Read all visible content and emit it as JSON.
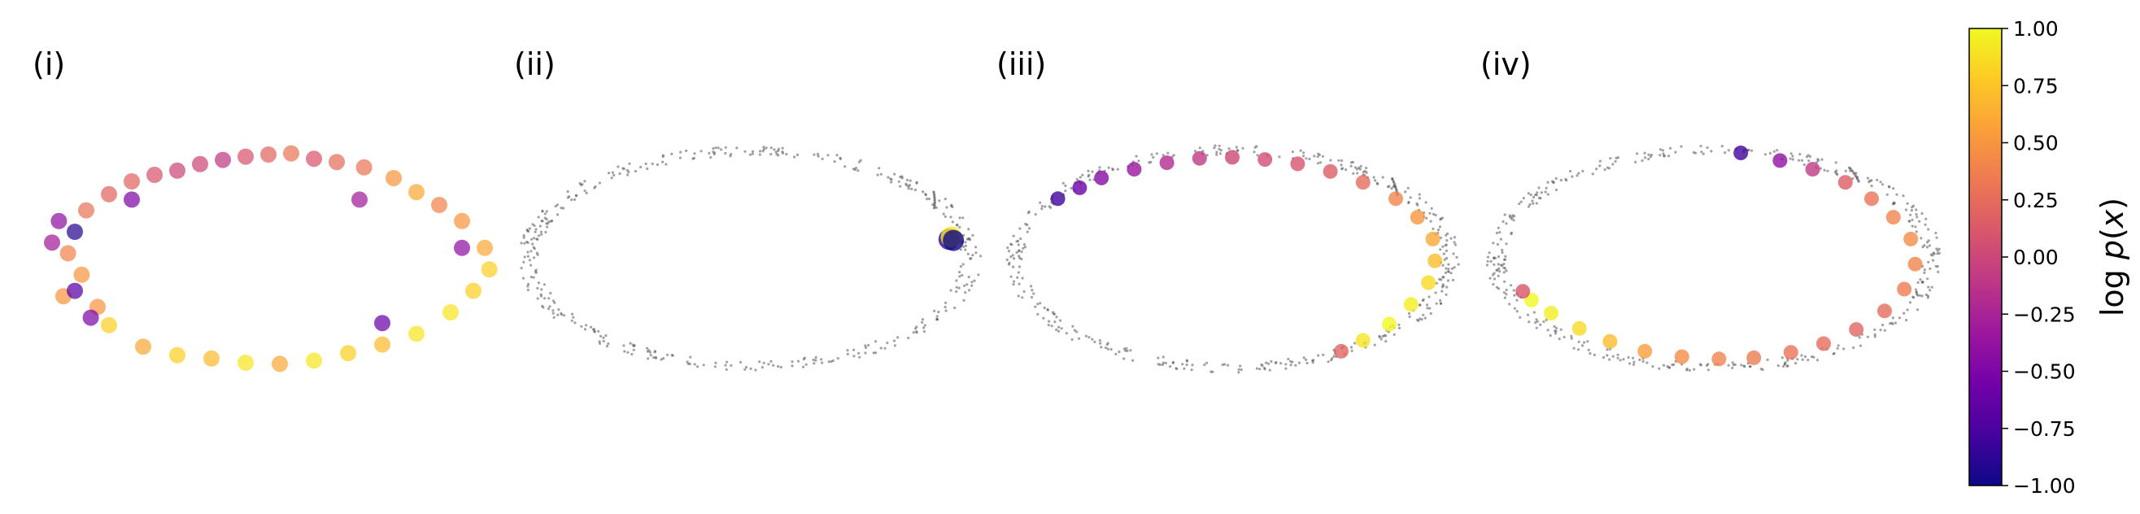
{
  "chart_data": [
    {
      "type": "scatter",
      "panel_label": "(i)",
      "grid": false,
      "axes_visible": false,
      "background_points": "none",
      "points": [
        {
          "x": -0.95,
          "y": 0.15,
          "v": -0.3
        },
        {
          "x": -0.92,
          "y": 0.35,
          "v": -0.4
        },
        {
          "x": -0.88,
          "y": 0.05,
          "v": 0.4
        },
        {
          "x": -0.85,
          "y": 0.25,
          "v": -0.9
        },
        {
          "x": -0.82,
          "y": -0.15,
          "v": 0.5
        },
        {
          "x": -0.9,
          "y": -0.35,
          "v": 0.5
        },
        {
          "x": -0.8,
          "y": 0.45,
          "v": 0.3
        },
        {
          "x": -0.75,
          "y": -0.45,
          "v": 0.5
        },
        {
          "x": -0.7,
          "y": 0.6,
          "v": 0.2
        },
        {
          "x": -0.6,
          "y": 0.72,
          "v": 0.2
        },
        {
          "x": -0.5,
          "y": 0.78,
          "v": 0.1
        },
        {
          "x": -0.4,
          "y": 0.82,
          "v": 0.0
        },
        {
          "x": -0.3,
          "y": 0.88,
          "v": 0.0
        },
        {
          "x": -0.2,
          "y": 0.92,
          "v": -0.1
        },
        {
          "x": -0.1,
          "y": 0.95,
          "v": 0.1
        },
        {
          "x": 0.0,
          "y": 0.97,
          "v": 0.2
        },
        {
          "x": 0.1,
          "y": 0.98,
          "v": 0.3
        },
        {
          "x": 0.2,
          "y": 0.93,
          "v": 0.1
        },
        {
          "x": 0.3,
          "y": 0.9,
          "v": 0.25
        },
        {
          "x": 0.42,
          "y": 0.85,
          "v": 0.3
        },
        {
          "x": 0.55,
          "y": 0.75,
          "v": 0.5
        },
        {
          "x": 0.65,
          "y": 0.62,
          "v": 0.6
        },
        {
          "x": 0.75,
          "y": 0.5,
          "v": 0.4
        },
        {
          "x": 0.85,
          "y": 0.35,
          "v": 0.5
        },
        {
          "x": 0.95,
          "y": 0.1,
          "v": 0.6
        },
        {
          "x": 0.97,
          "y": -0.1,
          "v": 0.8
        },
        {
          "x": 0.9,
          "y": -0.3,
          "v": 0.8
        },
        {
          "x": 0.8,
          "y": -0.5,
          "v": 0.9
        },
        {
          "x": 0.65,
          "y": -0.7,
          "v": 0.9
        },
        {
          "x": 0.5,
          "y": -0.8,
          "v": 0.7
        },
        {
          "x": 0.35,
          "y": -0.88,
          "v": 0.8
        },
        {
          "x": 0.2,
          "y": -0.95,
          "v": 0.9
        },
        {
          "x": 0.05,
          "y": -0.98,
          "v": 0.6
        },
        {
          "x": -0.1,
          "y": -0.97,
          "v": 0.9
        },
        {
          "x": -0.25,
          "y": -0.93,
          "v": 0.7
        },
        {
          "x": -0.4,
          "y": -0.9,
          "v": 0.8
        },
        {
          "x": -0.55,
          "y": -0.82,
          "v": 0.6
        },
        {
          "x": -0.7,
          "y": -0.62,
          "v": 0.8
        },
        {
          "x": -0.78,
          "y": -0.55,
          "v": -0.5
        },
        {
          "x": 0.5,
          "y": -0.6,
          "v": -0.6
        },
        {
          "x": 0.85,
          "y": 0.1,
          "v": -0.4
        },
        {
          "x": -0.85,
          "y": -0.3,
          "v": -0.7
        },
        {
          "x": 0.4,
          "y": 0.55,
          "v": -0.3
        },
        {
          "x": -0.6,
          "y": 0.55,
          "v": -0.5
        }
      ]
    },
    {
      "type": "scatter",
      "panel_label": "(ii)",
      "grid": false,
      "axes_visible": false,
      "background_points": "grey ring",
      "points": [
        {
          "x": 0.9,
          "y": 0.18,
          "v": -0.9
        },
        {
          "x": 0.91,
          "y": 0.2,
          "v": 0.9
        },
        {
          "x": 0.92,
          "y": 0.17,
          "v": -1.0
        }
      ]
    },
    {
      "type": "scatter",
      "panel_label": "(iii)",
      "grid": false,
      "axes_visible": false,
      "background_points": "grey ring",
      "points": [
        {
          "x": -0.8,
          "y": 0.55,
          "v": -0.8
        },
        {
          "x": -0.7,
          "y": 0.65,
          "v": -0.6
        },
        {
          "x": -0.6,
          "y": 0.74,
          "v": -0.45
        },
        {
          "x": -0.45,
          "y": 0.82,
          "v": -0.35
        },
        {
          "x": -0.3,
          "y": 0.88,
          "v": -0.2
        },
        {
          "x": -0.15,
          "y": 0.92,
          "v": -0.1
        },
        {
          "x": 0.0,
          "y": 0.93,
          "v": 0.0
        },
        {
          "x": 0.15,
          "y": 0.91,
          "v": 0.05
        },
        {
          "x": 0.3,
          "y": 0.87,
          "v": 0.1
        },
        {
          "x": 0.45,
          "y": 0.8,
          "v": 0.15
        },
        {
          "x": 0.6,
          "y": 0.7,
          "v": 0.25
        },
        {
          "x": 0.75,
          "y": 0.55,
          "v": 0.4
        },
        {
          "x": 0.85,
          "y": 0.38,
          "v": 0.5
        },
        {
          "x": 0.92,
          "y": 0.18,
          "v": 0.6
        },
        {
          "x": 0.93,
          "y": -0.02,
          "v": 0.7
        },
        {
          "x": 0.9,
          "y": -0.22,
          "v": 0.85
        },
        {
          "x": 0.82,
          "y": -0.42,
          "v": 0.95
        },
        {
          "x": 0.72,
          "y": -0.6,
          "v": 1.0
        },
        {
          "x": 0.6,
          "y": -0.75,
          "v": 0.9
        },
        {
          "x": 0.5,
          "y": -0.85,
          "v": 0.2
        }
      ]
    },
    {
      "type": "scatter",
      "panel_label": "(iv)",
      "grid": false,
      "axes_visible": false,
      "background_points": "grey ring",
      "points": [
        {
          "x": 0.12,
          "y": 0.97,
          "v": -0.8
        },
        {
          "x": 0.3,
          "y": 0.9,
          "v": -0.4
        },
        {
          "x": 0.45,
          "y": 0.82,
          "v": -0.1
        },
        {
          "x": 0.6,
          "y": 0.7,
          "v": 0.15
        },
        {
          "x": 0.72,
          "y": 0.55,
          "v": 0.3
        },
        {
          "x": 0.82,
          "y": 0.38,
          "v": 0.4
        },
        {
          "x": 0.9,
          "y": 0.18,
          "v": 0.45
        },
        {
          "x": 0.92,
          "y": -0.05,
          "v": 0.4
        },
        {
          "x": 0.87,
          "y": -0.28,
          "v": 0.35
        },
        {
          "x": 0.78,
          "y": -0.48,
          "v": 0.25
        },
        {
          "x": 0.65,
          "y": -0.65,
          "v": 0.2
        },
        {
          "x": 0.5,
          "y": -0.78,
          "v": 0.25
        },
        {
          "x": 0.35,
          "y": -0.86,
          "v": 0.3
        },
        {
          "x": 0.18,
          "y": -0.91,
          "v": 0.35
        },
        {
          "x": 0.02,
          "y": -0.92,
          "v": 0.4
        },
        {
          "x": -0.15,
          "y": -0.9,
          "v": 0.45
        },
        {
          "x": -0.32,
          "y": -0.85,
          "v": 0.55
        },
        {
          "x": -0.48,
          "y": -0.76,
          "v": 0.7
        },
        {
          "x": -0.62,
          "y": -0.64,
          "v": 0.85
        },
        {
          "x": -0.75,
          "y": -0.5,
          "v": 0.95
        },
        {
          "x": -0.84,
          "y": -0.38,
          "v": 1.0
        },
        {
          "x": -0.88,
          "y": -0.3,
          "v": 0.1
        }
      ]
    }
  ],
  "colorbar": {
    "label": "log p(x)",
    "range": [
      -1.0,
      1.0
    ],
    "colormap": "plasma",
    "ticks": [
      {
        "value": 1.0,
        "label": "1.00"
      },
      {
        "value": 0.75,
        "label": "0.75"
      },
      {
        "value": 0.5,
        "label": "0.50"
      },
      {
        "value": 0.25,
        "label": "0.25"
      },
      {
        "value": 0.0,
        "label": "0.00"
      },
      {
        "value": -0.25,
        "label": "−0.25"
      },
      {
        "value": -0.5,
        "label": "−0.50"
      },
      {
        "value": -0.75,
        "label": "−0.75"
      },
      {
        "value": -1.0,
        "label": "−1.00"
      }
    ],
    "colors": [
      "#0d0887",
      "#46039f",
      "#7201a8",
      "#9c179e",
      "#bd3786",
      "#d8576b",
      "#ed7953",
      "#fb9f3a",
      "#fdca26",
      "#f0f921"
    ]
  }
}
